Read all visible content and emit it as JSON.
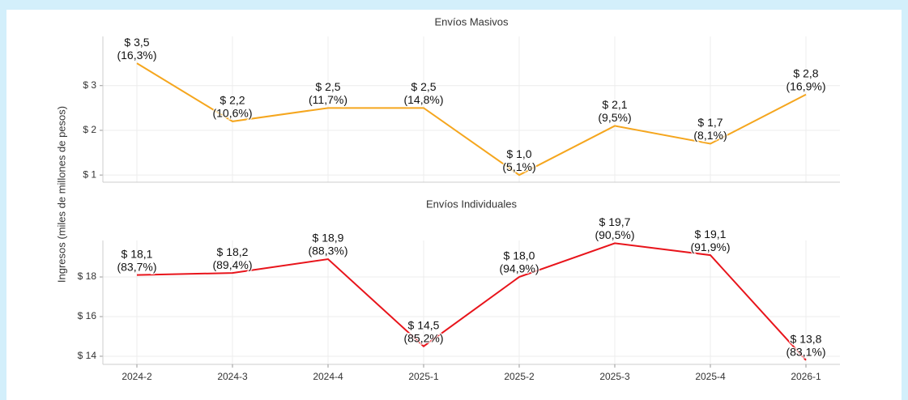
{
  "ylabel": "Ingresos (miles de millones de pesos)",
  "chart_data": [
    {
      "type": "line",
      "title": "Envíos Masivos",
      "series": [
        {
          "name": "Envíos Masivos",
          "color": "#f5a61e",
          "values": [
            3.5,
            2.2,
            2.5,
            2.5,
            1.0,
            2.1,
            1.7,
            2.8
          ],
          "value_labels": [
            "$ 3,5",
            "$ 2,2",
            "$ 2,5",
            "$ 2,5",
            "$ 1,0",
            "$ 2,1",
            "$ 1,7",
            "$ 2,8"
          ],
          "shares": [
            16.3,
            10.6,
            11.7,
            14.8,
            5.1,
            9.5,
            8.1,
            16.9
          ],
          "share_labels": [
            "(16,3%)",
            "(10,6%)",
            "(11,7%)",
            "(14,8%)",
            "(5,1%)",
            "(9,5%)",
            "(8,1%)",
            "(16,9%)"
          ]
        }
      ],
      "ylim": [
        0.84,
        4.1
      ],
      "yticks": [
        {
          "value": 1,
          "label": "$ 1"
        },
        {
          "value": 2,
          "label": "$ 2"
        },
        {
          "value": 3,
          "label": "$ 3"
        }
      ],
      "grid": true
    },
    {
      "type": "line",
      "title": "Envíos Individuales",
      "categories": [
        "2024-2",
        "2024-3",
        "2024-4",
        "2025-1",
        "2025-2",
        "2025-3",
        "2025-4",
        "2026-1"
      ],
      "series": [
        {
          "name": "Envíos Individuales",
          "color": "#e8141b",
          "values": [
            18.1,
            18.2,
            18.9,
            14.5,
            18.0,
            19.7,
            19.1,
            13.8
          ],
          "value_labels": [
            "$ 18,1",
            "$ 18,2",
            "$ 18,9",
            "$ 14,5",
            "$ 18,0",
            "$ 19,7",
            "$ 19,1",
            "$ 13,8"
          ],
          "shares": [
            83.7,
            89.4,
            88.3,
            85.2,
            94.9,
            90.5,
            91.9,
            83.1
          ],
          "share_labels": [
            "(83,7%)",
            "(89,4%)",
            "(88,3%)",
            "(85,2%)",
            "(94,9%)",
            "(90,5%)",
            "(91,9%)",
            "(83,1%)"
          ]
        }
      ],
      "ylim": [
        13.59,
        19.84
      ],
      "yticks": [
        {
          "value": 14,
          "label": "$ 14"
        },
        {
          "value": 16,
          "label": "$ 16"
        },
        {
          "value": 18,
          "label": "$ 18"
        }
      ],
      "grid": true
    }
  ]
}
